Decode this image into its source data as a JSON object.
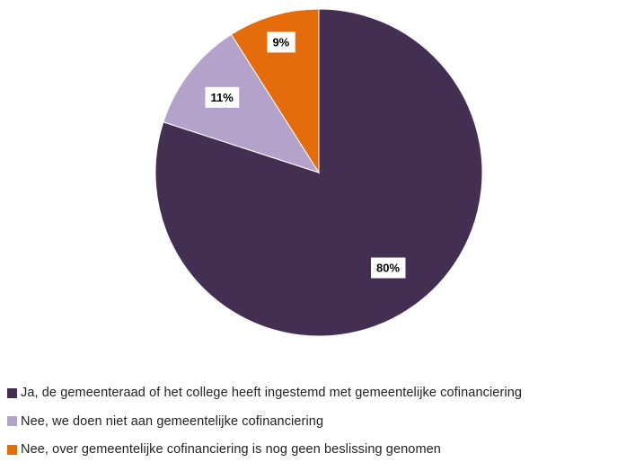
{
  "chart_data": {
    "type": "pie",
    "slices": [
      {
        "label": "Ja, de gemeenteraad of het college heeft ingestemd met gemeentelijke cofinanciering",
        "value": 80,
        "value_label": "80%",
        "color": "#432f51"
      },
      {
        "label": "Nee, we doen niet aan gemeentelijke cofinanciering",
        "value": 11,
        "value_label": "11%",
        "color": "#b3a2c9"
      },
      {
        "label": "Nee, over gemeentelijke cofinanciering is nog geen beslissing genomen",
        "value": 9,
        "value_label": "9%",
        "color": "#e46c0a"
      }
    ],
    "start_angle": "12 o'clock",
    "direction": "clockwise",
    "legend_position": "bottom-left"
  }
}
